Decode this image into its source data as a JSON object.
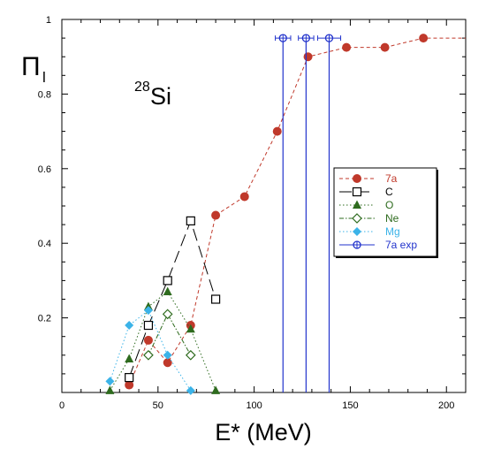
{
  "chart_data": {
    "type": "scatter",
    "ylabel_main": "Π",
    "ylabel_sub": "l",
    "xlabel": "E* (MeV)",
    "annotation_mass": "28",
    "annotation_element": "Si",
    "xlim": [
      0,
      210
    ],
    "ylim": [
      0,
      1
    ],
    "x_ticks": [
      0,
      50,
      100,
      150,
      200
    ],
    "y_ticks": [
      0.2,
      0.4,
      0.6,
      0.8,
      1
    ],
    "x_tick_labels": [
      "0",
      "50",
      "100",
      "150",
      "200"
    ],
    "y_tick_labels": [
      "0.2",
      "0.4",
      "0.6",
      "0.8",
      "1"
    ],
    "grid": false,
    "legend_position": "right-center",
    "series": [
      {
        "name": "7a",
        "color": "#c0392b",
        "marker": "filled-circle",
        "line": "dashed",
        "x": [
          35,
          45,
          55,
          67,
          80,
          95,
          112,
          128,
          148,
          168,
          188
        ],
        "y": [
          0.02,
          0.14,
          0.08,
          0.18,
          0.475,
          0.525,
          0.7,
          0.9,
          0.925,
          0.925,
          0.95
        ]
      },
      {
        "name": "C",
        "color": "#000000",
        "marker": "open-square",
        "line": "long-dash",
        "x": [
          35,
          45,
          55,
          67,
          80
        ],
        "y": [
          0.04,
          0.18,
          0.3,
          0.46,
          0.25
        ]
      },
      {
        "name": "O",
        "color": "#2e6b1e",
        "marker": "filled-triangle",
        "line": "dotted",
        "x": [
          25,
          35,
          45,
          55,
          67,
          80
        ],
        "y": [
          0.005,
          0.09,
          0.23,
          0.27,
          0.17,
          0.005
        ]
      },
      {
        "name": "Ne",
        "color": "#2e6b1e",
        "marker": "open-diamond",
        "line": "dash-dot",
        "x": [
          45,
          55,
          67
        ],
        "y": [
          0.1,
          0.21,
          0.1
        ]
      },
      {
        "name": "Mg",
        "color": "#3bb3e8",
        "marker": "filled-diamond",
        "line": "dotted",
        "x": [
          25,
          35,
          45,
          55,
          67
        ],
        "y": [
          0.03,
          0.18,
          0.22,
          0.1,
          0.005
        ]
      },
      {
        "name": "7a exp",
        "color": "#2233cc",
        "marker": "open-circle-cross",
        "line": "none",
        "x": [
          115,
          127,
          139
        ],
        "y": [
          0.95,
          0.95,
          0.95
        ],
        "x_err": [
          4,
          4,
          6
        ],
        "y_err_low": [
          0.95,
          0.95,
          0.95
        ]
      }
    ]
  }
}
